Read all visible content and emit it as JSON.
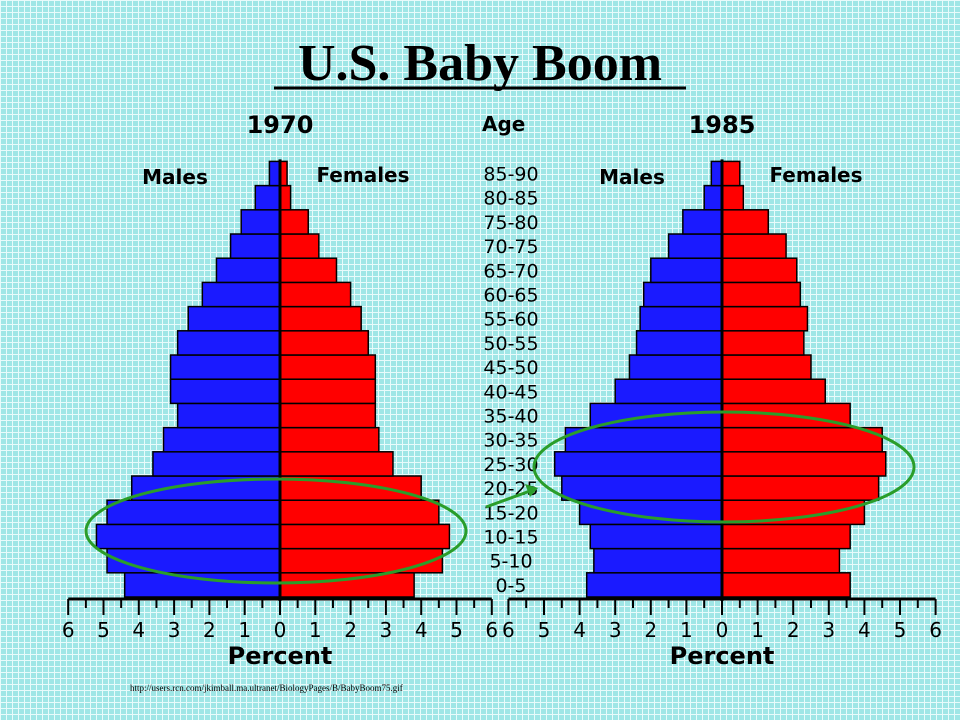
{
  "title": "U.S. Baby Boom",
  "source_url": "http://users.rcn.com/jkimball.ma.ultranet/BiologyPages/B/BabyBoom75.gif",
  "age_label": "Age",
  "colors": {
    "males": "#1a1aff",
    "females": "#ff0000",
    "ellipse": "#2a9d2a",
    "background": "#9fe6e6"
  },
  "chart_data": {
    "type": "bar",
    "orientation": "horizontal-population-pyramid",
    "categories": [
      "0-5",
      "5-10",
      "10-15",
      "15-20",
      "20-25",
      "25-30",
      "30-35",
      "35-40",
      "40-45",
      "45-50",
      "50-55",
      "55-60",
      "60-65",
      "65-70",
      "70-75",
      "75-80",
      "80-85",
      "85-90"
    ],
    "xlabel": "Percent",
    "ylabel": "Age",
    "xlim": [
      0,
      6
    ],
    "xticks": [
      "6",
      "5",
      "4",
      "3",
      "2",
      "1",
      "0",
      "1",
      "2",
      "3",
      "4",
      "5",
      "6"
    ],
    "charts": [
      {
        "year": "1970",
        "series": [
          {
            "name": "Males",
            "values": [
              4.4,
              4.9,
              5.2,
              4.9,
              4.2,
              3.6,
              3.3,
              2.9,
              3.1,
              3.1,
              2.9,
              2.6,
              2.2,
              1.8,
              1.4,
              1.1,
              0.7,
              0.3
            ]
          },
          {
            "name": "Females",
            "values": [
              3.8,
              4.6,
              4.8,
              4.5,
              4.0,
              3.2,
              2.8,
              2.7,
              2.7,
              2.7,
              2.5,
              2.3,
              2.0,
              1.6,
              1.1,
              0.8,
              0.3,
              0.2
            ]
          }
        ]
      },
      {
        "year": "1985",
        "series": [
          {
            "name": "Males",
            "values": [
              3.8,
              3.6,
              3.7,
              4.0,
              4.5,
              4.7,
              4.4,
              3.7,
              3.0,
              2.6,
              2.4,
              2.3,
              2.2,
              2.0,
              1.5,
              1.1,
              0.5,
              0.3
            ]
          },
          {
            "name": "Females",
            "values": [
              3.6,
              3.3,
              3.6,
              4.0,
              4.4,
              4.6,
              4.5,
              3.6,
              2.9,
              2.5,
              2.3,
              2.4,
              2.2,
              2.1,
              1.8,
              1.3,
              0.6,
              0.5
            ]
          }
        ]
      }
    ]
  }
}
